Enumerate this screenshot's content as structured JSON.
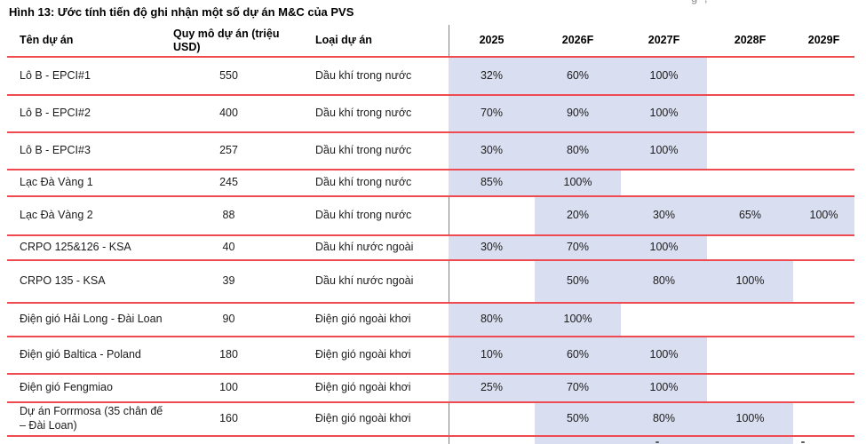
{
  "figure": {
    "title": "Hình 13: Ước tính tiến độ ghi nhận một số dự án M&C của PVS",
    "top_edge_clipped_fragment": "g ,"
  },
  "colors": {
    "rule_line_red": "#ee4a50",
    "highlight_lavender": "#d9def0"
  },
  "table": {
    "headers": {
      "name": "Tên dự án",
      "size": "Quy mô dự án (triệu USD)",
      "type": "Loại dự án",
      "years": [
        "2025",
        "2026F",
        "2027F",
        "2028F",
        "2029F"
      ]
    },
    "rows": [
      {
        "name": "Lô B - EPCI#1",
        "size": "550",
        "type": "Dầu khí trong nước",
        "values": [
          "32%",
          "60%",
          "100%",
          "",
          ""
        ]
      },
      {
        "name": "Lô B - EPCI#2",
        "size": "400",
        "type": "Dầu khí trong nước",
        "values": [
          "70%",
          "90%",
          "100%",
          "",
          ""
        ]
      },
      {
        "name": "Lô B - EPCI#3",
        "size": "257",
        "type": "Dầu khí trong nước",
        "values": [
          "30%",
          "80%",
          "100%",
          "",
          ""
        ]
      },
      {
        "name": "Lạc Đà Vàng 1",
        "size": "245",
        "type": "Dầu khí trong nước",
        "values": [
          "85%",
          "100%",
          "",
          "",
          ""
        ]
      },
      {
        "name": "Lạc Đà Vàng 2",
        "size": "88",
        "type": "Dầu khí trong nước",
        "values": [
          "",
          "20%",
          "30%",
          "65%",
          "100%"
        ]
      },
      {
        "name": "CRPO 125&126 - KSA",
        "size": "40",
        "type": "Dầu khí nước ngoài",
        "values": [
          "30%",
          "70%",
          "100%",
          "",
          ""
        ]
      },
      {
        "name": "CRPO 135 - KSA",
        "size": "39",
        "type": "Dầu khí nước ngoài",
        "values": [
          "",
          "50%",
          "80%",
          "100%",
          ""
        ]
      },
      {
        "name": "Điện gió Hải Long - Đài Loan",
        "size": "90",
        "type": "Điện gió ngoài khơi",
        "values": [
          "80%",
          "100%",
          "",
          "",
          ""
        ]
      },
      {
        "name": "Điện gió Baltica - Poland",
        "size": "180",
        "type": "Điện gió ngoài khơi",
        "values": [
          "10%",
          "60%",
          "100%",
          "",
          ""
        ]
      },
      {
        "name": "Điện gió Fengmiao",
        "size": "100",
        "type": "Điện gió ngoài khơi",
        "values": [
          "25%",
          "70%",
          "100%",
          "",
          ""
        ]
      },
      {
        "name": "Dự án Forrmosa (35 chân đế – Đài Loan)",
        "size": "160",
        "type": "Điện gió ngoài khơi",
        "values": [
          "",
          "50%",
          "80%",
          "100%",
          ""
        ]
      }
    ],
    "partial_bottom_row": {
      "highlighted_year_columns": [
        "2026F",
        "2027F",
        "2028F"
      ]
    }
  }
}
